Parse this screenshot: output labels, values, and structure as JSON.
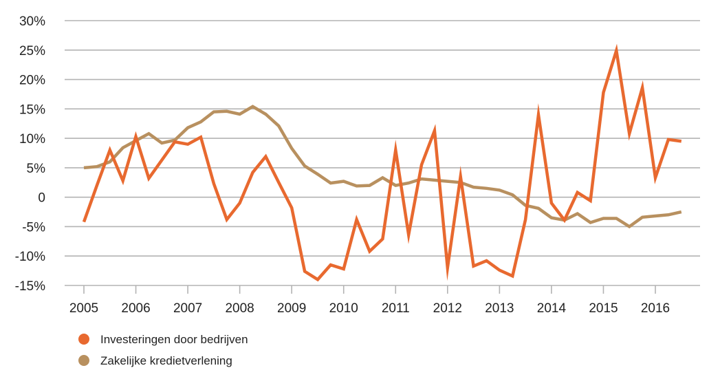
{
  "chart_data": {
    "type": "line",
    "title": "",
    "xlabel": "",
    "ylabel": "",
    "ylim": [
      -15,
      30
    ],
    "xlim": [
      2004.6,
      2016.9
    ],
    "yticks": [
      30,
      25,
      20,
      15,
      10,
      5,
      0,
      -5,
      -10,
      -15
    ],
    "ytick_labels": [
      "30%",
      "25%",
      "20%",
      "15%",
      "10%",
      "5%",
      "0",
      "-5%",
      "-10%",
      "-15%"
    ],
    "xticks": [
      2005,
      2006,
      2007,
      2008,
      2009,
      2010,
      2011,
      2012,
      2013,
      2014,
      2015,
      2016
    ],
    "xtick_labels": [
      "2005",
      "2006",
      "2007",
      "2008",
      "2009",
      "2010",
      "2011",
      "2012",
      "2013",
      "2014",
      "2015",
      "2016"
    ],
    "grid": "horizontal",
    "legend_position": "bottom-left",
    "series": [
      {
        "name": "Investeringen door bedrijven",
        "color": "#E8692F",
        "x": [
          2005.0,
          2005.25,
          2005.5,
          2005.75,
          2006.0,
          2006.25,
          2006.5,
          2006.75,
          2007.0,
          2007.25,
          2007.5,
          2007.75,
          2008.0,
          2008.25,
          2008.5,
          2008.75,
          2009.0,
          2009.25,
          2009.5,
          2009.75,
          2010.0,
          2010.25,
          2010.5,
          2010.75,
          2011.0,
          2011.25,
          2011.5,
          2011.75,
          2012.0,
          2012.25,
          2012.5,
          2012.75,
          2013.0,
          2013.25,
          2013.5,
          2013.75,
          2014.0,
          2014.25,
          2014.5,
          2014.75,
          2015.0,
          2015.25,
          2015.5,
          2015.75,
          2016.0,
          2016.25,
          2016.5
        ],
        "values": [
          -4.2,
          2.0,
          8.0,
          2.8,
          10.3,
          3.2,
          6.3,
          9.4,
          9.0,
          10.2,
          2.3,
          -3.8,
          -1.0,
          4.2,
          6.9,
          2.5,
          -1.8,
          -12.6,
          -14.0,
          -11.5,
          -12.2,
          -3.8,
          -9.2,
          -7.1,
          8.0,
          -6.4,
          5.5,
          11.3,
          -12.0,
          3.5,
          -11.7,
          -10.8,
          -12.4,
          -13.4,
          -3.8,
          14.0,
          -1.0,
          -3.9,
          0.8,
          -0.6,
          17.8,
          24.9,
          10.8,
          18.6,
          3.3,
          9.8,
          9.5
        ]
      },
      {
        "name": "Zakelijke kredietverlening",
        "color": "#B8905F",
        "x": [
          2005.0,
          2005.25,
          2005.5,
          2005.75,
          2006.0,
          2006.25,
          2006.5,
          2006.75,
          2007.0,
          2007.25,
          2007.5,
          2007.75,
          2008.0,
          2008.25,
          2008.5,
          2008.75,
          2009.0,
          2009.25,
          2009.5,
          2009.75,
          2010.0,
          2010.25,
          2010.5,
          2010.75,
          2011.0,
          2011.25,
          2011.5,
          2011.75,
          2012.0,
          2012.25,
          2012.5,
          2012.75,
          2013.0,
          2013.25,
          2013.5,
          2013.75,
          2014.0,
          2014.25,
          2014.5,
          2014.75,
          2015.0,
          2015.25,
          2015.5,
          2015.75,
          2016.0,
          2016.25,
          2016.5
        ],
        "values": [
          5.0,
          5.2,
          6.0,
          8.4,
          9.6,
          10.8,
          9.2,
          9.7,
          11.8,
          12.8,
          14.5,
          14.6,
          14.1,
          15.4,
          14.1,
          12.1,
          8.3,
          5.3,
          3.9,
          2.4,
          2.7,
          1.9,
          2.0,
          3.3,
          2.0,
          2.4,
          3.1,
          2.9,
          2.7,
          2.5,
          1.7,
          1.5,
          1.2,
          0.4,
          -1.4,
          -1.9,
          -3.5,
          -3.9,
          -2.8,
          -4.3,
          -3.6,
          -3.6,
          -5.0,
          -3.4,
          -3.2,
          -3.0,
          -2.5
        ]
      }
    ]
  }
}
